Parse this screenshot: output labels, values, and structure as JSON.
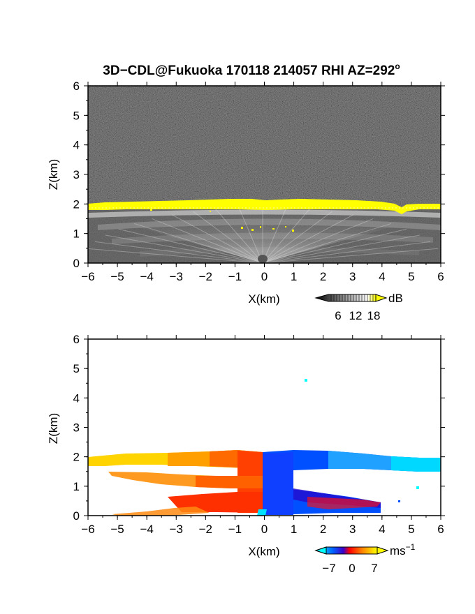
{
  "figure": {
    "title_main": "3D−CDL@Fukuoka 170118 214057 RHI AZ=292",
    "title_degree": "o"
  },
  "chart_data": [
    {
      "type": "heatmap",
      "panel": "backscatter",
      "xlabel": "X(km)",
      "ylabel": "Z(km)",
      "xlim": [
        -6,
        6
      ],
      "ylim": [
        0,
        6
      ],
      "xticks": [
        -6,
        -5,
        -4,
        -3,
        -2,
        -1,
        0,
        1,
        2,
        3,
        4,
        5,
        6
      ],
      "yticks": [
        0,
        1,
        2,
        3,
        4,
        5,
        6
      ],
      "colorbar": {
        "unit": "dB",
        "ticks": [
          6,
          12,
          18
        ],
        "range": [
          0,
          21
        ],
        "colors": [
          "#000000",
          "#5a5a5a",
          "#b4b4b4",
          "#ffffff",
          "#ffff00"
        ]
      },
      "features": {
        "aerosol_layer_top_km": [
          [
            -6,
            1.95
          ],
          [
            -4,
            2.0
          ],
          [
            -2,
            2.05
          ],
          [
            0,
            2.05
          ],
          [
            2,
            2.0
          ],
          [
            4,
            1.95
          ],
          [
            4.6,
            1.75
          ],
          [
            5,
            1.9
          ],
          [
            6,
            1.95
          ]
        ],
        "bright_layer_color": "#ffff00",
        "background_color": "#1e1e1e"
      }
    },
    {
      "type": "heatmap",
      "panel": "doppler_velocity",
      "xlabel": "X(km)",
      "ylabel": "Z(km)",
      "xlim": [
        -6,
        6
      ],
      "ylim": [
        0,
        6
      ],
      "xticks": [
        -6,
        -5,
        -4,
        -3,
        -2,
        -1,
        0,
        1,
        2,
        3,
        4,
        5,
        6
      ],
      "yticks": [
        0,
        1,
        2,
        3,
        4,
        5,
        6
      ],
      "colorbar": {
        "unit": "ms",
        "unit_exponent": "−1",
        "ticks": [
          -7,
          0,
          7
        ],
        "tick_labels": [
          "−7",
          "0",
          "7"
        ],
        "range": [
          -9,
          9
        ],
        "colors": [
          "#00ffff",
          "#0050ff",
          "#5000c8",
          "#ff0000",
          "#ff8000",
          "#ffff00"
        ]
      },
      "features": {
        "west_side_sign": "positive (toward warm colors)",
        "east_side_sign": "negative (toward cool colors)",
        "isolated_point": {
          "x_km": 1.45,
          "z_km": 4.6
        }
      }
    }
  ]
}
